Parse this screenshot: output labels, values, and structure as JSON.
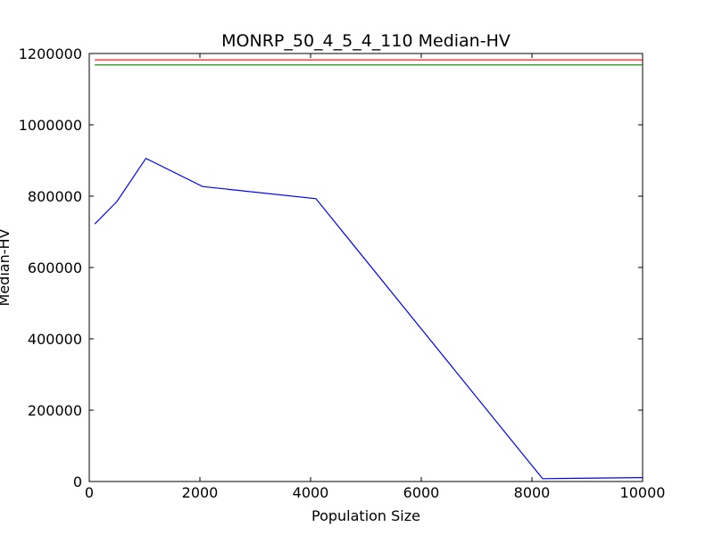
{
  "chart_data": {
    "type": "line",
    "title": "MONRP_50_4_5_4_110 Median-HV",
    "xlabel": "Population Size",
    "ylabel": "Median-HV",
    "xlim": [
      0,
      10000
    ],
    "ylim": [
      0,
      1200000
    ],
    "xticks": [
      0,
      2000,
      4000,
      6000,
      8000,
      10000
    ],
    "yticks": [
      0,
      200000,
      400000,
      600000,
      800000,
      1000000,
      1200000
    ],
    "xtick_labels": [
      "0",
      "2000",
      "4000",
      "6000",
      "8000",
      "10000"
    ],
    "ytick_labels": [
      "0",
      "200000",
      "400000",
      "600000",
      "800000",
      "1000000",
      "1200000"
    ],
    "grid": false,
    "series": [
      {
        "color": "#0000ff",
        "x": [
          100,
          500,
          1024,
          2048,
          4096,
          8192,
          10000
        ],
        "y": [
          722000,
          785000,
          906000,
          827000,
          793000,
          8000,
          11000
        ]
      },
      {
        "color": "#ff0000",
        "x": [
          100,
          10000
        ],
        "y": [
          1182000,
          1182000
        ]
      },
      {
        "color": "#008000",
        "x": [
          100,
          10000
        ],
        "y": [
          1168000,
          1168000
        ]
      }
    ]
  }
}
